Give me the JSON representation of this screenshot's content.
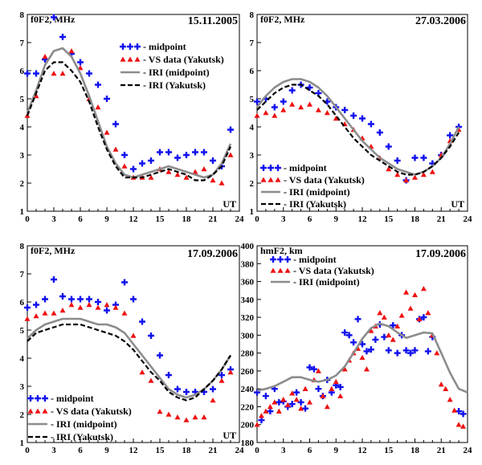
{
  "colors": {
    "midpoint": "#1111ee",
    "vs": "#ee1111",
    "iri_mid": "#8c8c8c",
    "iri_yak": "#000000"
  },
  "chart_data": [
    {
      "type": "line",
      "date": "15.11.2005",
      "ylabel": "f0F2, MHz",
      "xlabel": "UT",
      "xlim": [
        0,
        24
      ],
      "ylim": [
        1,
        8
      ],
      "xticks": [
        0,
        3,
        6,
        9,
        12,
        15,
        18,
        21,
        24
      ],
      "yticks": [
        1,
        2,
        3,
        4,
        5,
        6,
        7,
        8
      ],
      "legend_labels": [
        "- midpoint",
        "- VS data (Yakutsk)",
        "- IRI (midpoint)",
        "- IRI (Yakutsk)"
      ],
      "series": [
        {
          "name": "midpoint",
          "kind": "plus",
          "x": [
            0,
            1,
            2,
            3,
            4,
            5,
            6,
            7,
            8,
            9,
            10,
            11,
            12,
            13,
            14,
            15,
            16,
            17,
            18,
            19,
            20,
            21,
            22,
            23
          ],
          "y": [
            5.9,
            5.9,
            6.4,
            7.9,
            7.2,
            6.6,
            6.3,
            5.9,
            5.5,
            5.0,
            4.1,
            3.0,
            2.5,
            2.7,
            2.8,
            3.1,
            3.1,
            2.9,
            3.0,
            3.1,
            3.1,
            2.8,
            2.6,
            3.9
          ]
        },
        {
          "name": "VS data (Yakutsk)",
          "kind": "triangle",
          "x": [
            0,
            1,
            2,
            3,
            4,
            5,
            6,
            7,
            8,
            9,
            10,
            11,
            12,
            13,
            14,
            15,
            16,
            17,
            18,
            19,
            20,
            21,
            22,
            23
          ],
          "y": [
            4.4,
            5.1,
            6.5,
            5.9,
            5.9,
            6.7,
            6.1,
            5.0,
            4.7,
            3.8,
            3.2,
            2.6,
            2.2,
            2.2,
            2.2,
            2.5,
            2.4,
            2.3,
            2.2,
            2.4,
            2.5,
            2.1,
            2.0,
            3.0
          ]
        },
        {
          "name": "IRI (midpoint)",
          "kind": "line",
          "x": [
            0,
            1,
            2,
            3,
            4,
            5,
            6,
            7,
            8,
            9,
            10,
            11,
            12,
            13,
            14,
            15,
            16,
            17,
            18,
            19,
            20,
            21,
            22,
            23
          ],
          "y": [
            4.5,
            5.3,
            6.2,
            6.7,
            6.8,
            6.5,
            5.9,
            5.1,
            4.2,
            3.3,
            2.7,
            2.3,
            2.2,
            2.3,
            2.4,
            2.5,
            2.6,
            2.5,
            2.4,
            2.3,
            2.2,
            2.3,
            2.7,
            3.4
          ]
        },
        {
          "name": "IRI (Yakutsk)",
          "kind": "dash",
          "x": [
            0,
            1,
            2,
            3,
            4,
            5,
            6,
            7,
            8,
            9,
            10,
            11,
            12,
            13,
            14,
            15,
            16,
            17,
            18,
            19,
            20,
            21,
            22,
            23
          ],
          "y": [
            4.4,
            5.2,
            6.0,
            6.3,
            6.3,
            6.0,
            5.6,
            4.9,
            4.0,
            3.2,
            2.6,
            2.2,
            2.2,
            2.2,
            2.3,
            2.4,
            2.5,
            2.4,
            2.3,
            2.1,
            2.1,
            2.3,
            2.6,
            3.3
          ]
        }
      ]
    },
    {
      "type": "line",
      "date": "27.03.2006",
      "ylabel": "f0F2, MHz",
      "xlabel": "UT",
      "xlim": [
        0,
        24
      ],
      "ylim": [
        1,
        8
      ],
      "xticks": [
        0,
        3,
        6,
        9,
        12,
        15,
        18,
        21,
        24
      ],
      "yticks": [
        1,
        2,
        3,
        4,
        5,
        6,
        7,
        8
      ],
      "legend_labels": [
        "- midpoint",
        "- VS data (Yakutsk)",
        "- IRI (midpoint)",
        "- IRI (Yakutsk)"
      ],
      "series": [
        {
          "name": "midpoint",
          "kind": "plus",
          "x": [
            0,
            1,
            2,
            3,
            4,
            5,
            6,
            7,
            8,
            9,
            10,
            11,
            12,
            13,
            14,
            15,
            16,
            17,
            18,
            19,
            20,
            21,
            22,
            23
          ],
          "y": [
            4.9,
            5.0,
            4.7,
            4.9,
            5.3,
            5.5,
            5.4,
            5.2,
            4.9,
            4.7,
            4.6,
            4.4,
            4.3,
            4.1,
            3.8,
            3.3,
            2.8,
            2.1,
            2.9,
            2.9,
            2.7,
            3.0,
            3.7,
            4.0
          ]
        },
        {
          "name": "VS data (Yakutsk)",
          "kind": "triangle",
          "x": [
            0,
            1,
            2,
            3,
            4,
            5,
            6,
            7,
            8,
            9,
            10,
            11,
            12,
            13,
            14,
            15,
            16,
            17,
            18,
            19,
            20,
            21,
            22,
            23
          ],
          "y": [
            4.4,
            4.5,
            4.4,
            4.6,
            4.8,
            4.7,
            4.8,
            4.6,
            4.5,
            4.3,
            4.1,
            3.9,
            3.6,
            3.3,
            2.9,
            2.5,
            2.3,
            2.1,
            2.2,
            2.3,
            2.4,
            3.0,
            3.5,
            3.9
          ]
        },
        {
          "name": "IRI (midpoint)",
          "kind": "line",
          "x": [
            0,
            1,
            2,
            3,
            4,
            5,
            6,
            7,
            8,
            9,
            10,
            11,
            12,
            13,
            14,
            15,
            16,
            17,
            18,
            19,
            20,
            21,
            22,
            23
          ],
          "y": [
            4.7,
            5.1,
            5.4,
            5.6,
            5.7,
            5.7,
            5.6,
            5.4,
            5.1,
            4.7,
            4.3,
            3.9,
            3.5,
            3.2,
            2.9,
            2.7,
            2.5,
            2.4,
            2.3,
            2.4,
            2.6,
            2.9,
            3.4,
            4.0
          ]
        },
        {
          "name": "IRI (Yakutsk)",
          "kind": "dash",
          "x": [
            0,
            1,
            2,
            3,
            4,
            5,
            6,
            7,
            8,
            9,
            10,
            11,
            12,
            13,
            14,
            15,
            16,
            17,
            18,
            19,
            20,
            21,
            22,
            23
          ],
          "y": [
            4.6,
            4.9,
            5.2,
            5.4,
            5.5,
            5.5,
            5.3,
            5.1,
            4.8,
            4.4,
            4.0,
            3.6,
            3.3,
            3.0,
            2.8,
            2.6,
            2.4,
            2.3,
            2.3,
            2.4,
            2.6,
            2.9,
            3.3,
            3.8
          ]
        }
      ]
    },
    {
      "type": "line",
      "date": "17.09.2006",
      "ylabel": "f0F2, MHz",
      "xlabel": "UT",
      "xlim": [
        0,
        24
      ],
      "ylim": [
        1,
        8
      ],
      "xticks": [
        0,
        3,
        6,
        9,
        12,
        15,
        18,
        21,
        24
      ],
      "yticks": [
        1,
        2,
        3,
        4,
        5,
        6,
        7,
        8
      ],
      "legend_labels": [
        "- midpoint",
        "- VS data (Yakutsk)",
        "- IRI (midpoint)",
        "- IRI (Yakutsk)"
      ],
      "series": [
        {
          "name": "midpoint",
          "kind": "plus",
          "x": [
            0,
            1,
            2,
            3,
            4,
            5,
            6,
            7,
            8,
            9,
            10,
            11,
            12,
            13,
            14,
            15,
            16,
            17,
            18,
            19,
            20,
            21,
            22,
            23
          ],
          "y": [
            5.8,
            5.9,
            6.1,
            6.8,
            6.2,
            6.1,
            6.1,
            6.1,
            6.0,
            5.7,
            5.9,
            6.7,
            6.1,
            5.3,
            4.8,
            4.1,
            3.4,
            2.9,
            2.8,
            2.8,
            2.8,
            2.9,
            3.4,
            3.6
          ]
        },
        {
          "name": "VS data (Yakutsk)",
          "kind": "triangle",
          "x": [
            0,
            1,
            2,
            3,
            4,
            5,
            6,
            7,
            8,
            9,
            10,
            11,
            12,
            13,
            14,
            15,
            16,
            17,
            18,
            19,
            20,
            21,
            22,
            23
          ],
          "y": [
            5.4,
            5.5,
            5.6,
            5.6,
            5.7,
            5.9,
            5.8,
            5.9,
            5.8,
            5.9,
            5.8,
            5.6,
            4.8,
            3.5,
            3.2,
            2.1,
            2.0,
            1.9,
            1.8,
            1.9,
            1.9,
            2.5,
            3.2,
            3.5
          ]
        },
        {
          "name": "IRI (midpoint)",
          "kind": "line",
          "x": [
            0,
            1,
            2,
            3,
            4,
            5,
            6,
            7,
            8,
            9,
            10,
            11,
            12,
            13,
            14,
            15,
            16,
            17,
            18,
            19,
            20,
            21,
            22,
            23
          ],
          "y": [
            4.7,
            5.0,
            5.2,
            5.3,
            5.4,
            5.4,
            5.4,
            5.3,
            5.2,
            5.2,
            5.1,
            4.9,
            4.5,
            4.1,
            3.7,
            3.3,
            2.9,
            2.7,
            2.6,
            2.7,
            2.9,
            3.2,
            3.6,
            4.1
          ]
        },
        {
          "name": "IRI (Yakutsk)",
          "kind": "dash",
          "x": [
            0,
            1,
            2,
            3,
            4,
            5,
            6,
            7,
            8,
            9,
            10,
            11,
            12,
            13,
            14,
            15,
            16,
            17,
            18,
            19,
            20,
            21,
            22,
            23
          ],
          "y": [
            4.6,
            4.9,
            5.0,
            5.1,
            5.2,
            5.2,
            5.2,
            5.1,
            5.0,
            4.9,
            4.8,
            4.6,
            4.3,
            3.9,
            3.5,
            3.2,
            2.8,
            2.6,
            2.5,
            2.6,
            2.9,
            3.2,
            3.6,
            4.1
          ]
        }
      ]
    },
    {
      "type": "line",
      "date": "17.09.2006",
      "ylabel": "hmF2, km",
      "xlabel": "",
      "xlim": [
        0,
        24
      ],
      "ylim": [
        180,
        400
      ],
      "xticks": [
        0,
        3,
        6,
        9,
        12,
        15,
        18,
        21,
        24
      ],
      "yticks": [
        180,
        200,
        220,
        240,
        260,
        280,
        300,
        320,
        340,
        360,
        380,
        400
      ],
      "legend_labels": [
        "- midpoint",
        "- VS data (Yakutsk)",
        "- IRI (midpoint)"
      ],
      "series": [
        {
          "name": "midpoint",
          "kind": "plus",
          "x": [
            0,
            0.5,
            1,
            1.5,
            2,
            2.5,
            3,
            3.5,
            4,
            4.5,
            5,
            5.5,
            6,
            6.5,
            7,
            7.5,
            8,
            8.5,
            9,
            9.5,
            10,
            10.5,
            11,
            11.5,
            12,
            12.5,
            13,
            13.5,
            14,
            14.5,
            15,
            15.5,
            16,
            16.5,
            17,
            17.5,
            18,
            18.5,
            19,
            19.5,
            20,
            23,
            23.5
          ],
          "y": [
            236,
            205,
            232,
            215,
            240,
            225,
            226,
            220,
            223,
            236,
            225,
            218,
            264,
            262,
            240,
            232,
            250,
            236,
            244,
            242,
            303,
            300,
            292,
            318,
            290,
            282,
            284,
            295,
            312,
            298,
            283,
            311,
            280,
            300,
            283,
            280,
            283,
            318,
            320,
            282,
            298,
            215,
            212
          ]
        },
        {
          "name": "VS data (Yakutsk)",
          "kind": "triangle",
          "x": [
            0,
            0.5,
            1,
            1.5,
            2,
            2.5,
            3,
            3.5,
            4,
            4.5,
            5,
            5.5,
            6,
            6.5,
            7,
            7.5,
            8,
            8.5,
            9,
            9.5,
            10,
            10.5,
            11,
            11.5,
            12,
            12.5,
            13,
            13.5,
            14,
            14.5,
            15,
            15.5,
            16,
            16.5,
            17,
            17.5,
            18,
            18.5,
            19,
            19.5,
            20,
            20.5,
            21,
            21.5,
            22,
            22.5,
            23,
            23.5
          ],
          "y": [
            200,
            210,
            215,
            220,
            225,
            215,
            228,
            222,
            235,
            228,
            218,
            240,
            225,
            250,
            260,
            232,
            220,
            240,
            248,
            232,
            262,
            272,
            280,
            285,
            275,
            262,
            305,
            310,
            325,
            320,
            300,
            295,
            310,
            322,
            348,
            330,
            345,
            318,
            352,
            325,
            300,
            280,
            245,
            240,
            228,
            216,
            200,
            198
          ]
        },
        {
          "name": "IRI (midpoint)",
          "kind": "line",
          "x": [
            0,
            1,
            2,
            3,
            4,
            5,
            6,
            7,
            8,
            9,
            10,
            11,
            12,
            13,
            14,
            15,
            16,
            17,
            18,
            19,
            20,
            21,
            22,
            23,
            24
          ],
          "y": [
            238,
            240,
            243,
            248,
            253,
            253,
            250,
            248,
            250,
            255,
            265,
            280,
            296,
            308,
            313,
            310,
            303,
            297,
            300,
            303,
            302,
            280,
            258,
            240,
            236
          ]
        }
      ]
    }
  ]
}
